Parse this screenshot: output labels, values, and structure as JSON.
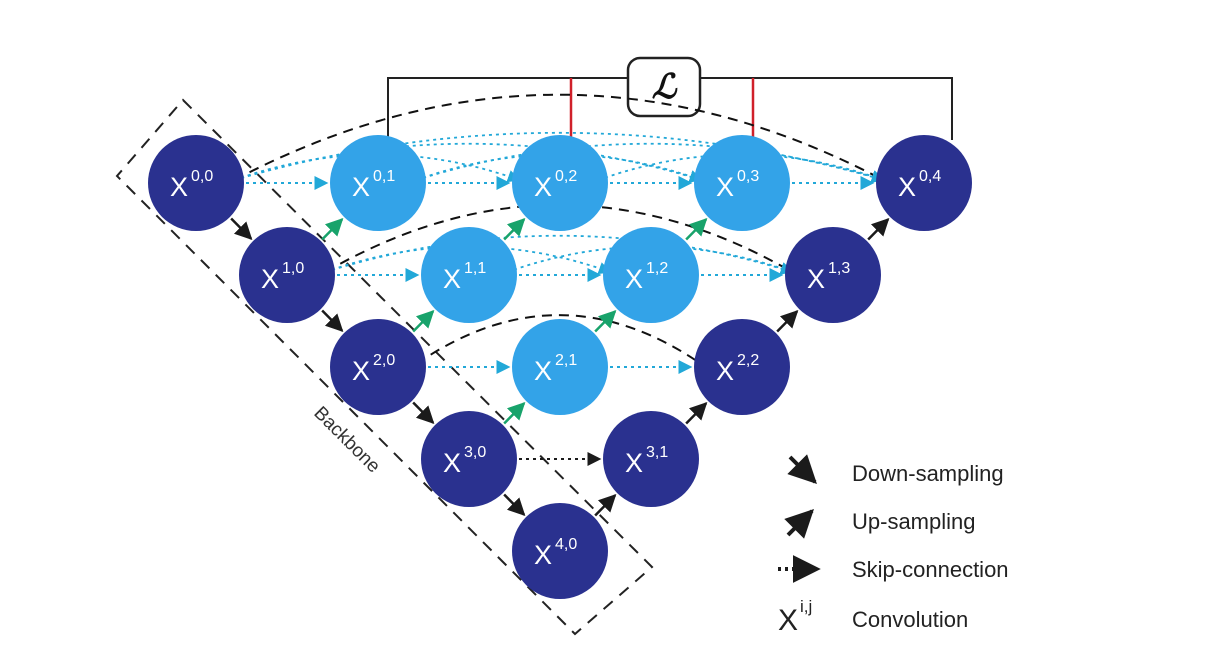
{
  "loss": {
    "symbol": "ℒ"
  },
  "backbone": {
    "label": "Backbone"
  },
  "colors": {
    "dark_node": "#2a318f",
    "light_node": "#33a3e8",
    "down_arrow": "#1b1b1b",
    "up_arrow_green": "#18a36b",
    "up_arrow_dark": "#1b1b1b",
    "skip_cyan": "#22a8d8",
    "skip_dark": "#1b1b1b",
    "dense_dash": "#111111",
    "deep_supervision": "#d0202a",
    "loss_line": "#222222"
  },
  "nodes": [
    {
      "id": "x00",
      "label": "X",
      "sup": "0,0",
      "i": 0,
      "j": 0,
      "tone": "dark"
    },
    {
      "id": "x10",
      "label": "X",
      "sup": "1,0",
      "i": 1,
      "j": 0,
      "tone": "dark"
    },
    {
      "id": "x20",
      "label": "X",
      "sup": "2,0",
      "i": 2,
      "j": 0,
      "tone": "dark"
    },
    {
      "id": "x30",
      "label": "X",
      "sup": "3,0",
      "i": 3,
      "j": 0,
      "tone": "dark"
    },
    {
      "id": "x40",
      "label": "X",
      "sup": "4,0",
      "i": 4,
      "j": 0,
      "tone": "dark"
    },
    {
      "id": "x01",
      "label": "X",
      "sup": "0,1",
      "i": 0,
      "j": 1,
      "tone": "light"
    },
    {
      "id": "x11",
      "label": "X",
      "sup": "1,1",
      "i": 1,
      "j": 1,
      "tone": "light"
    },
    {
      "id": "x21",
      "label": "X",
      "sup": "2,1",
      "i": 2,
      "j": 1,
      "tone": "light"
    },
    {
      "id": "x31",
      "label": "X",
      "sup": "3,1",
      "i": 3,
      "j": 1,
      "tone": "dark"
    },
    {
      "id": "x02",
      "label": "X",
      "sup": "0,2",
      "i": 0,
      "j": 2,
      "tone": "light"
    },
    {
      "id": "x12",
      "label": "X",
      "sup": "1,2",
      "i": 1,
      "j": 2,
      "tone": "light"
    },
    {
      "id": "x22",
      "label": "X",
      "sup": "2,2",
      "i": 2,
      "j": 2,
      "tone": "dark"
    },
    {
      "id": "x03",
      "label": "X",
      "sup": "0,3",
      "i": 0,
      "j": 3,
      "tone": "light"
    },
    {
      "id": "x13",
      "label": "X",
      "sup": "1,3",
      "i": 1,
      "j": 3,
      "tone": "dark"
    },
    {
      "id": "x04",
      "label": "X",
      "sup": "0,4",
      "i": 0,
      "j": 4,
      "tone": "dark"
    }
  ],
  "edges": [
    {
      "from": "x00",
      "to": "x10",
      "kind": "down"
    },
    {
      "from": "x10",
      "to": "x20",
      "kind": "down"
    },
    {
      "from": "x20",
      "to": "x30",
      "kind": "down"
    },
    {
      "from": "x30",
      "to": "x40",
      "kind": "down"
    },
    {
      "from": "x10",
      "to": "x01",
      "kind": "up-green"
    },
    {
      "from": "x20",
      "to": "x11",
      "kind": "up-green"
    },
    {
      "from": "x30",
      "to": "x21",
      "kind": "up-green"
    },
    {
      "from": "x11",
      "to": "x02",
      "kind": "up-green"
    },
    {
      "from": "x21",
      "to": "x12",
      "kind": "up-green"
    },
    {
      "from": "x12",
      "to": "x03",
      "kind": "up-green"
    },
    {
      "from": "x40",
      "to": "x31",
      "kind": "up-dark"
    },
    {
      "from": "x31",
      "to": "x22",
      "kind": "up-dark"
    },
    {
      "from": "x22",
      "to": "x13",
      "kind": "up-dark"
    },
    {
      "from": "x13",
      "to": "x04",
      "kind": "up-dark"
    },
    {
      "from": "x00",
      "to": "x01",
      "kind": "skip-cyan"
    },
    {
      "from": "x01",
      "to": "x02",
      "kind": "skip-cyan"
    },
    {
      "from": "x02",
      "to": "x03",
      "kind": "skip-cyan"
    },
    {
      "from": "x03",
      "to": "x04",
      "kind": "skip-cyan"
    },
    {
      "from": "x10",
      "to": "x11",
      "kind": "skip-cyan"
    },
    {
      "from": "x11",
      "to": "x12",
      "kind": "skip-cyan"
    },
    {
      "from": "x12",
      "to": "x13",
      "kind": "skip-cyan"
    },
    {
      "from": "x20",
      "to": "x21",
      "kind": "skip-cyan"
    },
    {
      "from": "x21",
      "to": "x22",
      "kind": "skip-cyan"
    },
    {
      "from": "x30",
      "to": "x31",
      "kind": "skip-dark"
    }
  ],
  "dense_arcs": [
    {
      "from": "x00",
      "to": "x04",
      "kind": "dense-dark"
    },
    {
      "from": "x10",
      "to": "x13",
      "kind": "dense-dark"
    },
    {
      "from": "x20",
      "to": "x22",
      "kind": "dense-dark"
    },
    {
      "from": "x00",
      "to": "x02",
      "kind": "dense-cyan"
    },
    {
      "from": "x00",
      "to": "x03",
      "kind": "dense-cyan"
    },
    {
      "from": "x00",
      "to": "x04",
      "kind": "dense-cyan"
    },
    {
      "from": "x01",
      "to": "x03",
      "kind": "dense-cyan"
    },
    {
      "from": "x01",
      "to": "x04",
      "kind": "dense-cyan"
    },
    {
      "from": "x02",
      "to": "x04",
      "kind": "dense-cyan"
    },
    {
      "from": "x10",
      "to": "x12",
      "kind": "dense-cyan"
    },
    {
      "from": "x10",
      "to": "x13",
      "kind": "dense-cyan"
    },
    {
      "from": "x11",
      "to": "x13",
      "kind": "dense-cyan"
    }
  ],
  "supervision": [
    {
      "from": "x01",
      "kind": "loss-line"
    },
    {
      "from": "x02",
      "kind": "deep-supervision"
    },
    {
      "from": "x03",
      "kind": "deep-supervision"
    },
    {
      "from": "x04",
      "kind": "loss-line"
    }
  ],
  "legend": [
    {
      "kind": "down",
      "label": "Down-sampling"
    },
    {
      "kind": "up",
      "label": "Up-sampling"
    },
    {
      "kind": "skip",
      "label": "Skip-connection"
    },
    {
      "kind": "conv",
      "symbol": "X",
      "sup": "i,j",
      "label": "Convolution"
    }
  ]
}
